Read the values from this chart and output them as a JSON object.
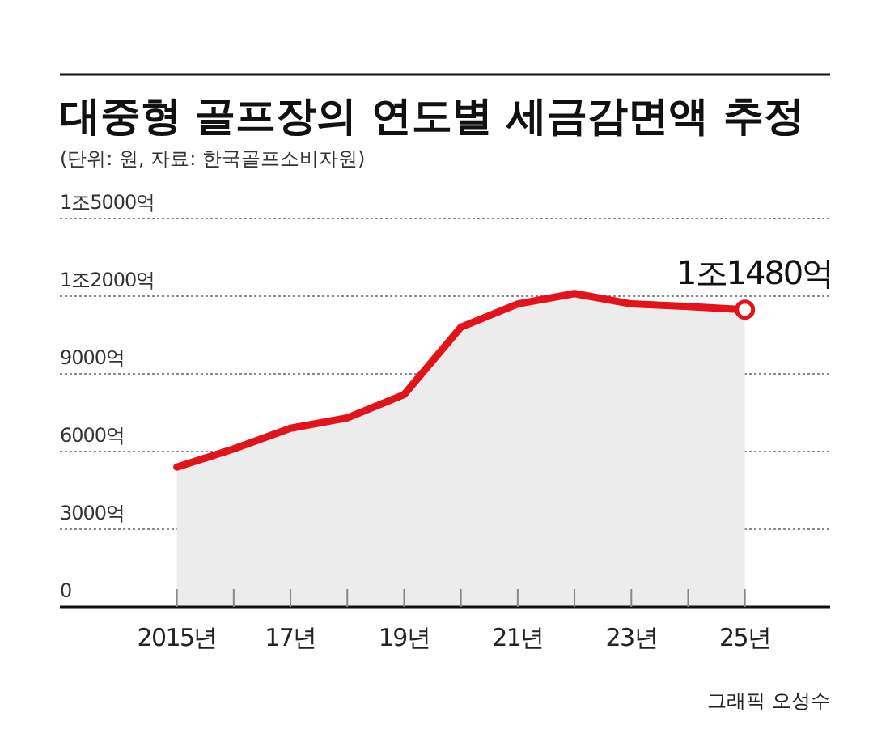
{
  "chart_data": {
    "type": "area",
    "title": "대중형 골프장의 연도별 세금감면액 추정",
    "subtitle": "(단위: 원, 자료: 한국골프소비자원)",
    "categories": [
      "2015년",
      null,
      "17년",
      null,
      "19년",
      null,
      "21년",
      null,
      "23년",
      null,
      "25년"
    ],
    "series": [
      {
        "color": "#e3131b",
        "values": [
          5400,
          6100,
          6900,
          7300,
          8200,
          10800,
          11700,
          12100,
          11700,
          11600,
          11480
        ]
      }
    ],
    "ylim": [
      0,
      15000
    ],
    "yticks": [
      0,
      {
        "value": 3000,
        "label": "3000억"
      },
      {
        "value": 6000,
        "label": "6000억"
      },
      {
        "value": 9000,
        "label": "9000억"
      },
      {
        "value": 12000,
        "label": "1조2000억"
      },
      {
        "value": 15000,
        "label": "1조5000억"
      }
    ],
    "grid": "y",
    "annotations": [
      {
        "text": "1조1480억",
        "x": "25년",
        "y": 11480
      },
      "그래픽 오성수"
    ]
  }
}
